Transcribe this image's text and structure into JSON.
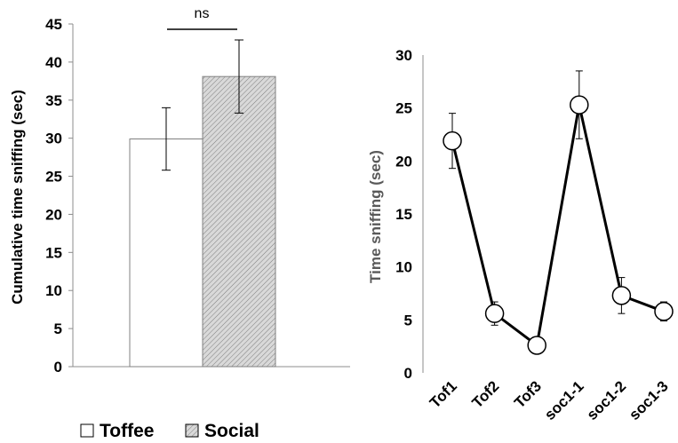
{
  "chart_data": [
    {
      "type": "bar",
      "categories": [
        "Toffee",
        "Social"
      ],
      "values": [
        29.9,
        38.1
      ],
      "errors": [
        4.1,
        4.8
      ],
      "ylabel": "Cumulative time sniffing (sec)",
      "ylim": [
        0,
        45
      ],
      "yticks": [
        0,
        5,
        10,
        15,
        20,
        25,
        30,
        35,
        40,
        45
      ],
      "significance": "ns",
      "legend": [
        "Toffee",
        "Social"
      ],
      "legend_placement": "bottom",
      "colors": {
        "toffee": "#ffffff",
        "social": "#d9d9d9",
        "stroke": "#808080"
      },
      "grid": false
    },
    {
      "type": "line",
      "categories": [
        "Tof1",
        "Tof2",
        "Tof3",
        "soc1-1",
        "soc1-2",
        "soc1-3"
      ],
      "values": [
        21.9,
        5.6,
        2.6,
        25.3,
        7.3,
        5.8
      ],
      "errors": [
        2.6,
        1.1,
        0.3,
        3.2,
        1.7,
        0.9
      ],
      "ylabel": "Time sniffing (sec)",
      "ylim": [
        0,
        30
      ],
      "yticks": [
        0,
        5,
        10,
        15,
        20,
        25,
        30
      ],
      "colors": {
        "line": "#000000",
        "marker": "#ffffff"
      },
      "grid": false
    }
  ]
}
